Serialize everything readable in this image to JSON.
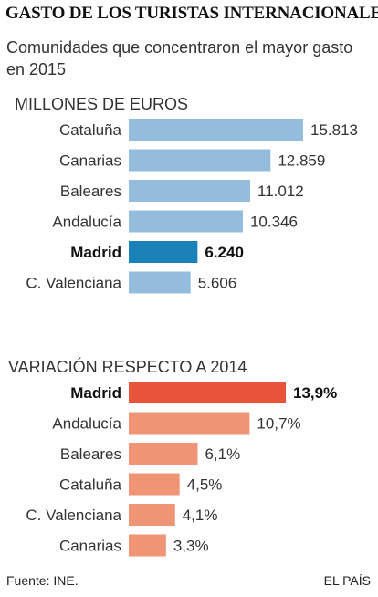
{
  "title": "GASTO DE LOS TURISTAS INTERNACIONALES",
  "subtitle": "Comunidades que concentraron el mayor gasto en 2015",
  "chart_data": [
    {
      "type": "bar",
      "orientation": "horizontal",
      "title": "MILLONES DE EUROS",
      "categories": [
        "Cataluña",
        "Canarias",
        "Baleares",
        "Andalucía",
        "Madrid",
        "C. Valenciana"
      ],
      "values": [
        15813,
        12859,
        11012,
        10346,
        6240,
        5606
      ],
      "value_labels": [
        "15.813",
        "12.859",
        "11.012",
        "10.346",
        "6.240",
        "5.606"
      ],
      "highlight": "Madrid",
      "colors": {
        "bar": "#94bcdc",
        "highlight": "#1a82b9"
      },
      "xlim": [
        0,
        15813
      ]
    },
    {
      "type": "bar",
      "orientation": "horizontal",
      "title": "VARIACIÓN RESPECTO A 2014",
      "categories": [
        "Madrid",
        "Andalucía",
        "Baleares",
        "Cataluña",
        "C. Valenciana",
        "Canarias"
      ],
      "values": [
        13.9,
        10.7,
        6.1,
        4.5,
        4.1,
        3.3
      ],
      "value_labels": [
        "13,9%",
        "10,7%",
        "6,1%",
        "4,5%",
        "4,1%",
        "3,3%"
      ],
      "highlight": "Madrid",
      "colors": {
        "bar": "#ef9474",
        "highlight": "#e8543a"
      },
      "xlim": [
        0,
        13.9
      ]
    }
  ],
  "footer": {
    "source": "Fuente: INE.",
    "brand": "EL PAÍS"
  }
}
